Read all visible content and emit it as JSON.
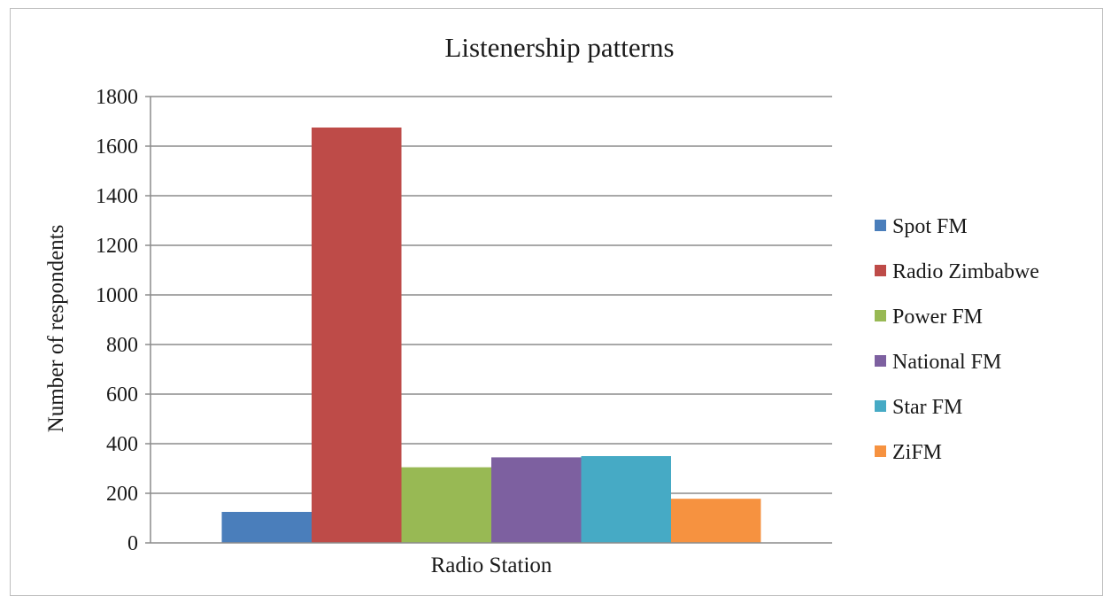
{
  "chart_data": {
    "type": "bar",
    "title": "Listenership  patterns",
    "xlabel": "Radio Station",
    "ylabel": "Number of respondents",
    "ylim": [
      0,
      1800
    ],
    "yticks": [
      0,
      200,
      400,
      600,
      800,
      1000,
      1200,
      1400,
      1600,
      1800
    ],
    "categories": [
      "Radio Station"
    ],
    "grid": true,
    "legend_position": "right",
    "series": [
      {
        "name": "Spot FM",
        "values": [
          125
        ],
        "color": "#4a7ebb"
      },
      {
        "name": "Radio Zimbabwe",
        "values": [
          1675
        ],
        "color": "#be4b48"
      },
      {
        "name": "Power FM",
        "values": [
          305
        ],
        "color": "#98b954"
      },
      {
        "name": "National FM",
        "values": [
          345
        ],
        "color": "#7d60a0"
      },
      {
        "name": "Star FM",
        "values": [
          350
        ],
        "color": "#46aac5"
      },
      {
        "name": "ZiFM",
        "values": [
          178
        ],
        "color": "#f69240"
      }
    ]
  }
}
